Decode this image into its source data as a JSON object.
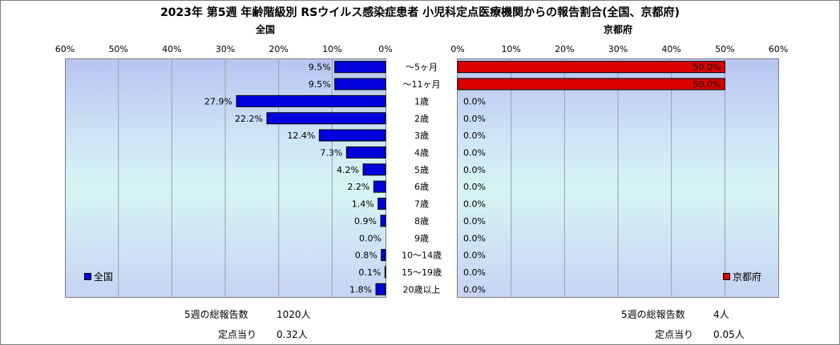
{
  "title": "2023年 第5週 年齢階級別 RSウイルス感染症患者 小児科定点医療機関からの報告割合(全国、京都府)",
  "left_panel_title": "全国",
  "right_panel_title": "京都府",
  "legend": {
    "left": "全国",
    "right": "京都府"
  },
  "colors": {
    "left_bar": "#0000dd",
    "right_bar": "#dd0000",
    "bar_stroke": "#000000"
  },
  "footer": {
    "left_total_label": "5週の総報告数",
    "left_total_value": "1020人",
    "left_per_label": "定点当り",
    "left_per_value": "0.32人",
    "right_total_label": "5週の総報告数",
    "right_total_value": "4人",
    "right_per_label": "定点当り",
    "right_per_value": "0.05人"
  },
  "chart_data": [
    {
      "type": "bar",
      "orientation": "horizontal",
      "title": "全国",
      "categories": [
        "～5ヶ月",
        "～11ヶ月",
        "1歳",
        "2歳",
        "3歳",
        "4歳",
        "5歳",
        "6歳",
        "7歳",
        "8歳",
        "9歳",
        "10～14歳",
        "15～19歳",
        "20歳以上"
      ],
      "series": [
        {
          "name": "全国",
          "values": [
            9.5,
            9.5,
            27.9,
            22.2,
            12.4,
            7.3,
            4.2,
            2.2,
            1.4,
            0.9,
            0.0,
            0.8,
            0.1,
            1.8
          ]
        }
      ],
      "value_labels": [
        "9.5%",
        "9.5%",
        "27.9%",
        "22.2%",
        "12.4%",
        "7.3%",
        "4.2%",
        "2.2%",
        "1.4%",
        "0.9%",
        "0.0%",
        "0.8%",
        "0.1%",
        "1.8%"
      ],
      "xlim": [
        0,
        60
      ],
      "x_reversed": true,
      "ticks": [
        "60%",
        "50%",
        "40%",
        "30%",
        "20%",
        "10%",
        "0%"
      ],
      "grid": true,
      "legend_position": "bottom-left"
    },
    {
      "type": "bar",
      "orientation": "horizontal",
      "title": "京都府",
      "categories": [
        "～5ヶ月",
        "～11ヶ月",
        "1歳",
        "2歳",
        "3歳",
        "4歳",
        "5歳",
        "6歳",
        "7歳",
        "8歳",
        "9歳",
        "10～14歳",
        "15～19歳",
        "20歳以上"
      ],
      "series": [
        {
          "name": "京都府",
          "values": [
            50.0,
            50.0,
            0.0,
            0.0,
            0.0,
            0.0,
            0.0,
            0.0,
            0.0,
            0.0,
            0.0,
            0.0,
            0.0,
            0.0
          ]
        }
      ],
      "value_labels": [
        "50.0%",
        "50.0%",
        "0.0%",
        "0.0%",
        "0.0%",
        "0.0%",
        "0.0%",
        "0.0%",
        "0.0%",
        "0.0%",
        "0.0%",
        "0.0%",
        "0.0%",
        "0.0%"
      ],
      "xlim": [
        0,
        60
      ],
      "x_reversed": false,
      "ticks": [
        "0%",
        "10%",
        "20%",
        "30%",
        "40%",
        "50%",
        "60%"
      ],
      "grid": true,
      "legend_position": "bottom-right"
    }
  ]
}
